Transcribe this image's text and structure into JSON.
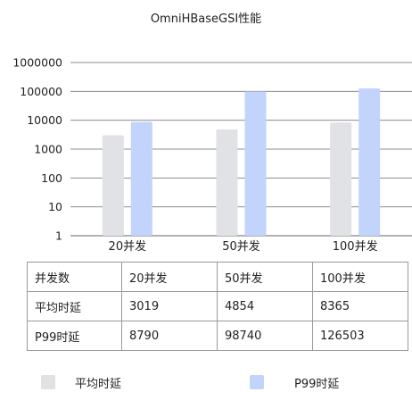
{
  "chart_data": {
    "type": "bar",
    "title": "OmniHBaseGSI性能",
    "yscale": "log",
    "ylim": [
      1,
      1000000
    ],
    "yticks": [
      "1",
      "10",
      "100",
      "1000",
      "10000",
      "100000",
      "1000000"
    ],
    "categories": [
      "20并发",
      "50并发",
      "100并发"
    ],
    "series": [
      {
        "name": "平均时延",
        "values": [
          3019,
          4854,
          8365
        ],
        "color": "#e1e2e6"
      },
      {
        "name": "P99时延",
        "values": [
          8790,
          98740,
          126503
        ],
        "color": "#c2d4fb"
      }
    ],
    "grid": true,
    "legend": "bottom"
  },
  "table": {
    "header": [
      "并发数",
      "20并发",
      "50并发",
      "100并发"
    ],
    "rows": [
      [
        "平均时延",
        "3019",
        "4854",
        "8365"
      ],
      [
        "P99时延",
        "8790",
        "98740",
        "126503"
      ]
    ]
  }
}
